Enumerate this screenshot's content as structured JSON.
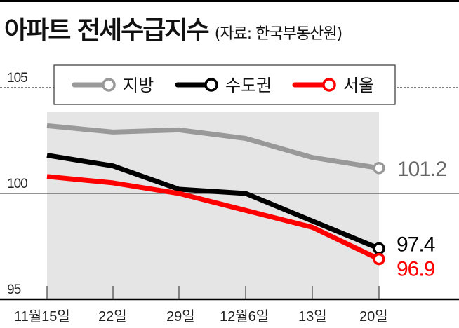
{
  "title": "아파트 전세수급지수",
  "source": "(자료: 한국부동산원)",
  "colors": {
    "local": "#999999",
    "capital": "#000000",
    "seoul": "#ff0000",
    "fill": "#e5e5e5",
    "local_label": "#666666"
  },
  "legend": [
    {
      "name": "지방",
      "color": "#999999"
    },
    {
      "name": "수도권",
      "color": "#000000"
    },
    {
      "name": "서울",
      "color": "#ff0000"
    }
  ],
  "y_ticks": [
    "105",
    "100",
    "95"
  ],
  "x_ticks": [
    "11월15일",
    "22일",
    "29일",
    "12월6일",
    "13일",
    "20일"
  ],
  "end_labels": {
    "local": "101.2",
    "capital": "97.4",
    "seoul": "96.9"
  },
  "chart_data": {
    "type": "line",
    "title": "아파트 전세수급지수",
    "subtitle": "(자료: 한국부동산원)",
    "xlabel": "",
    "ylabel": "",
    "categories": [
      "11월15일",
      "22일",
      "29일",
      "12월6일",
      "13일",
      "20일"
    ],
    "series": [
      {
        "name": "지방",
        "color": "#999999",
        "values": [
          103.2,
          102.9,
          103.0,
          102.6,
          101.7,
          101.2
        ]
      },
      {
        "name": "수도권",
        "color": "#000000",
        "values": [
          101.8,
          101.3,
          100.2,
          100.0,
          98.7,
          97.4
        ]
      },
      {
        "name": "서울",
        "color": "#ff0000",
        "values": [
          100.8,
          100.5,
          100.0,
          99.2,
          98.4,
          96.9
        ]
      }
    ],
    "ylim": [
      95,
      105
    ],
    "y_ticks": [
      95,
      100,
      105
    ],
    "grid": "reference lines at 100 (solid) and 105 (dotted)",
    "legend_position": "top, boxed",
    "annotations": [
      "101.2",
      "97.4",
      "96.9"
    ]
  }
}
